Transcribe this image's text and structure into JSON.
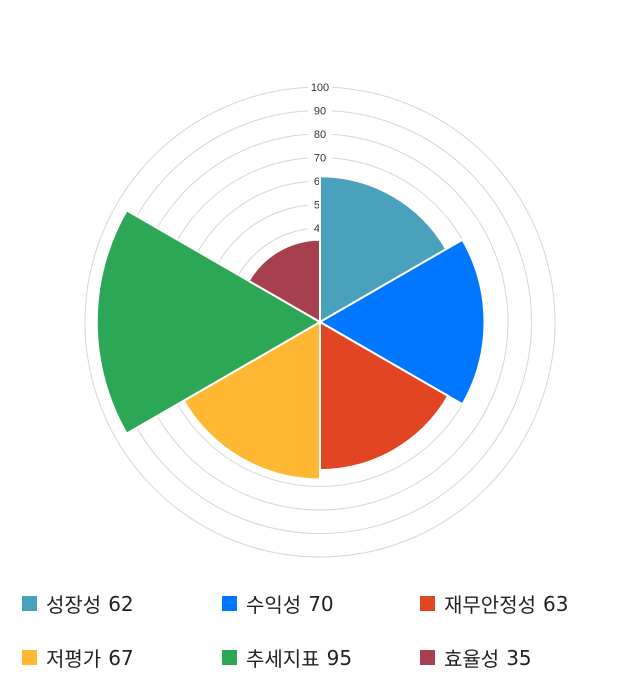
{
  "chart_data": {
    "type": "polar-area",
    "categories": [
      "성장성",
      "수익성",
      "재무안정성",
      "저평가",
      "추세지표",
      "효율성"
    ],
    "values": [
      62,
      70,
      63,
      67,
      95,
      35
    ],
    "colors": [
      "#4aa1bb",
      "#0077ff",
      "#e24522",
      "#ffb833",
      "#2ba756",
      "#a6404f"
    ],
    "rlim": [
      0,
      100
    ],
    "ticks": [
      10,
      20,
      30,
      40,
      50,
      60,
      70,
      80,
      90,
      100
    ],
    "grid": true,
    "legend_position": "bottom"
  }
}
